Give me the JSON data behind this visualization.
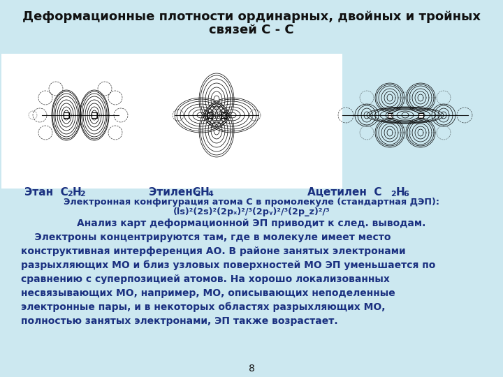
{
  "title_line1": "Деформационные плотности ординарных, двойных и тройных",
  "title_line2": "связей С - С",
  "bg_color": "#cce8f0",
  "white_area_color": "#ffffff",
  "title_color": "#111111",
  "blue_text": "#1a3080",
  "black_text": "#111111",
  "page_number": "8",
  "config_line1": "Электронная конфигурация атома C в промолекуле (стандартная ДЭП):",
  "config_line2": "(ls)²(2s)²(2pₓ)²³(2pᵧ)²³(2p_z)²³",
  "analysis_line": "Анализ карт деформационной ЭП приводит к след. выводам.",
  "body_lines": [
    "    Электроны концентрируются там, где в молекуле имеет место",
    "конструктивная интерференция АО. В районе занятых электронами",
    "разрыхляющих МО и близ узловых поверхностей МО ЭП уменьшается по",
    "сравнению с суперпозицией атомов. На хорошо локализованных",
    "несвязывающих МО, например, МО, описывающих неподеленные",
    "электронные пары, и в некоторых областях разрыхляющих МО,",
    "полностью занятых электронами, ЭП также возрастает."
  ],
  "label_ethane": "Этан   C",
  "label_ethane_sub": "2",
  "label_ethane2": "H",
  "label_ethane2_sub": "2",
  "label_ethylene": "ЭтиленC",
  "label_ethylene_sub": "2",
  "label_ethylene2": "H",
  "label_ethylene2_sub": "4",
  "label_acetylene": "Ацетилен",
  "label_acetylene2": "C",
  "label_acetylene2_sub": "2",
  "label_acetylene3": "H",
  "label_acetylene3_sub": "6"
}
